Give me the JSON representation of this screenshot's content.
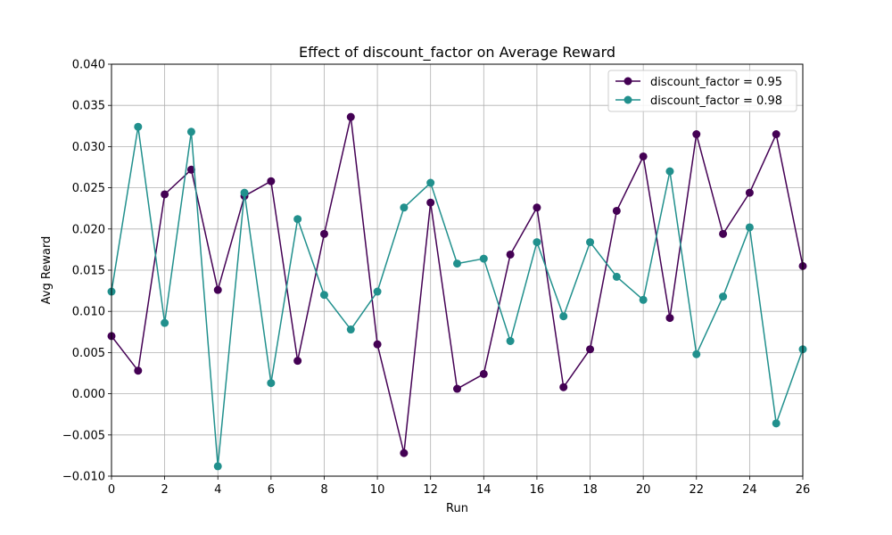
{
  "chart_data": {
    "type": "line",
    "title": "Effect of discount_factor on Average Reward",
    "xlabel": "Run",
    "ylabel": "Avg Reward",
    "xlim": [
      0,
      26
    ],
    "ylim": [
      -0.01,
      0.04
    ],
    "x_ticks": [
      "0",
      "2",
      "4",
      "6",
      "8",
      "10",
      "12",
      "14",
      "16",
      "18",
      "20",
      "22",
      "24",
      "26"
    ],
    "y_ticks": [
      "−0.010",
      "−0.005",
      "0.000",
      "0.005",
      "0.010",
      "0.015",
      "0.020",
      "0.025",
      "0.030",
      "0.035",
      "0.040"
    ],
    "grid": true,
    "legend_position": "top-right",
    "x": [
      0,
      1,
      2,
      3,
      4,
      5,
      6,
      7,
      8,
      9,
      10,
      11,
      12,
      13,
      14,
      15,
      16,
      17,
      18,
      19,
      20,
      21,
      22,
      23,
      24,
      25,
      26
    ],
    "series": [
      {
        "name": "discount_factor = 0.95",
        "color": "#440154",
        "values": [
          0.007,
          0.0028,
          0.0242,
          0.0272,
          0.0126,
          0.024,
          0.0258,
          0.004,
          0.0194,
          0.0336,
          0.006,
          -0.0072,
          0.0232,
          0.0006,
          0.0024,
          0.0169,
          0.0226,
          0.0008,
          0.0054,
          0.0222,
          0.0288,
          0.0092,
          0.0315,
          0.0194,
          0.0244,
          0.0315,
          0.0155
        ]
      },
      {
        "name": "discount_factor = 0.98",
        "color": "#21908d",
        "values": [
          0.0124,
          0.0324,
          0.0086,
          0.0318,
          -0.0088,
          0.0244,
          0.0013,
          0.0212,
          0.012,
          0.0078,
          0.0124,
          0.0226,
          0.0256,
          0.0158,
          0.0164,
          0.0064,
          0.0184,
          0.0094,
          0.0184,
          0.0142,
          0.0114,
          0.027,
          0.0048,
          0.0118,
          0.0202,
          -0.0036,
          0.0054
        ]
      }
    ]
  }
}
